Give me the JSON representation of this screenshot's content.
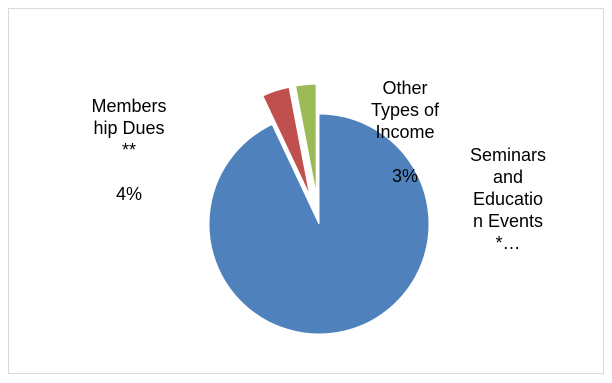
{
  "chart_data": {
    "type": "pie",
    "title": "",
    "legend": "none",
    "start_angle_deg": 0,
    "slices": [
      {
        "name": "Seminars and Education Events *…",
        "value": 93,
        "color": "#4f81bd",
        "exploded": false
      },
      {
        "name": "Membership Dues **",
        "value": 4,
        "color": "#c0504d",
        "exploded": true
      },
      {
        "name": "Other Types of Income",
        "value": 3,
        "color": "#9bbb59",
        "exploded": true
      }
    ],
    "data_labels": [
      {
        "category": "Seminars\nand\nEducatio\nn Events\n*…",
        "value": ""
      },
      {
        "category": "Members\nhip Dues\n**",
        "value": "4%"
      },
      {
        "category": "Other\nTypes of\nIncome",
        "value": "3%"
      }
    ]
  }
}
